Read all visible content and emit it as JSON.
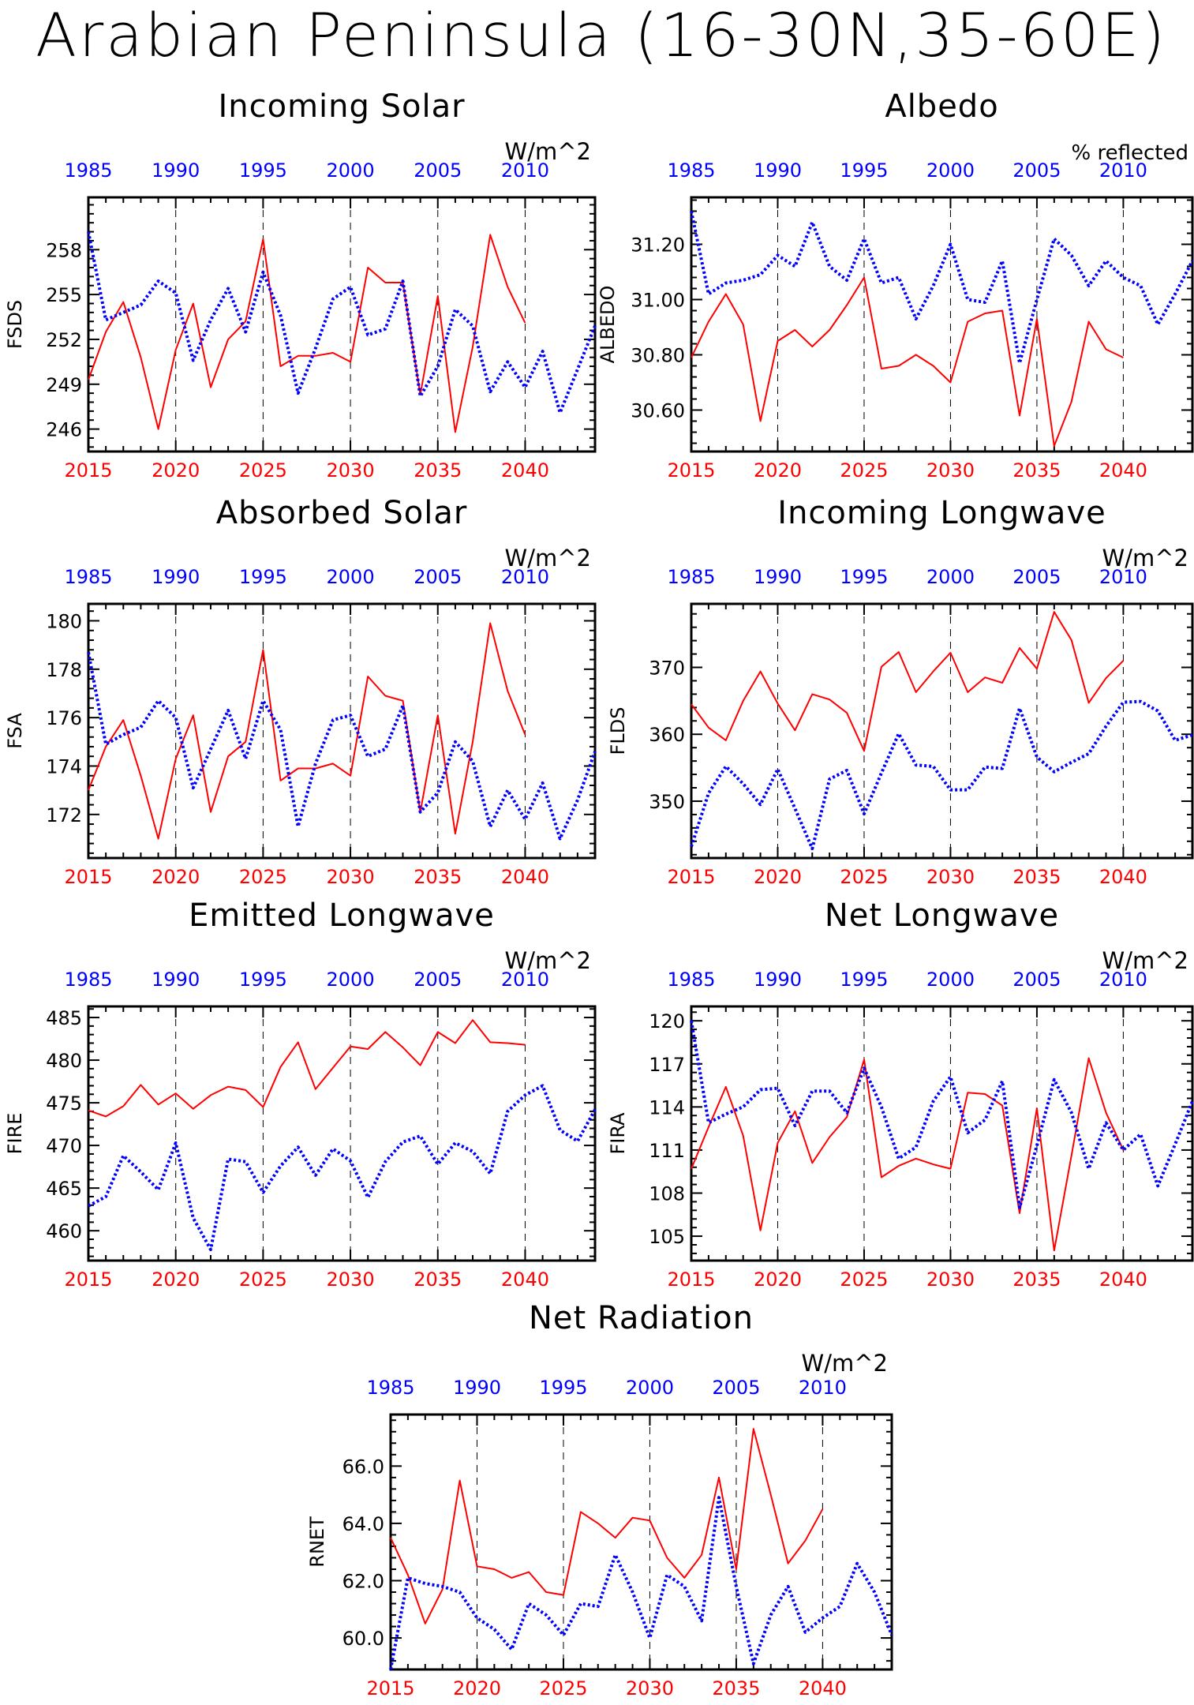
{
  "title": "Arabian Peninsula (16-30N,35-60E)",
  "colors": {
    "cesm2": "#ff0000",
    "obs": "#0000ff",
    "frame": "#000000",
    "grid": "#000000"
  },
  "chart_data": [
    {
      "type": "line",
      "title": "Incoming Solar",
      "units": "W/m^2",
      "ylabel": "FSDS",
      "ylim": [
        244.5,
        261.5
      ],
      "yticks": [
        246,
        249,
        252,
        255,
        258
      ],
      "ytick_labels": [
        "246",
        "249",
        "252",
        "255",
        "258"
      ],
      "x_bottom": {
        "range": [
          2015,
          2044
        ],
        "ticks": [
          2015,
          2020,
          2025,
          2030,
          2035,
          2040
        ],
        "color": "#ff0000"
      },
      "x_top": {
        "range": [
          1985,
          2014
        ],
        "ticks": [
          1985,
          1990,
          1995,
          2000,
          2005,
          2010
        ],
        "color": "#0000ff"
      },
      "gridlines_x": [
        2020,
        2025,
        2030,
        2035,
        2040
      ],
      "series": [
        {
          "axis": "bottom",
          "style": "solid",
          "color": "#ff0000",
          "x_start": 2015,
          "values": [
            249.3,
            252.5,
            254.5,
            250.8,
            246.0,
            251.3,
            254.4,
            248.8,
            252.0,
            253.2,
            258.7,
            250.2,
            250.9,
            250.9,
            251.1,
            250.5,
            256.8,
            255.8,
            255.8,
            248.3,
            254.9,
            245.8,
            251.5,
            259.0,
            255.5,
            253.1
          ]
        },
        {
          "axis": "top",
          "style": "dotted",
          "color": "#0000ff",
          "x_start": 1985,
          "values": [
            259.2,
            253.3,
            253.8,
            254.3,
            255.9,
            255.1,
            250.6,
            253.3,
            255.4,
            252.5,
            256.5,
            253.6,
            248.4,
            251.4,
            254.7,
            255.5,
            252.3,
            252.7,
            255.9,
            248.2,
            250.2,
            254.0,
            252.9,
            248.5,
            250.5,
            248.8,
            251.2,
            247.1,
            250.0,
            252.9
          ]
        }
      ]
    },
    {
      "type": "line",
      "title": "Albedo",
      "units": "% reflected",
      "ylabel": "ALBEDO",
      "ylim": [
        30.45,
        31.37
      ],
      "yticks": [
        30.6,
        30.8,
        31.0,
        31.2
      ],
      "ytick_labels": [
        "30.60",
        "30.80",
        "31.00",
        "31.20"
      ],
      "x_bottom": {
        "range": [
          2015,
          2044
        ],
        "ticks": [
          2015,
          2020,
          2025,
          2030,
          2035,
          2040
        ],
        "color": "#ff0000"
      },
      "x_top": {
        "range": [
          1985,
          2014
        ],
        "ticks": [
          1985,
          1990,
          1995,
          2000,
          2005,
          2010
        ],
        "color": "#0000ff"
      },
      "gridlines_x": [
        2020,
        2025,
        2030,
        2035,
        2040
      ],
      "series": [
        {
          "axis": "bottom",
          "style": "solid",
          "color": "#ff0000",
          "x_start": 2015,
          "values": [
            30.79,
            30.92,
            31.02,
            30.91,
            30.56,
            30.85,
            30.89,
            30.83,
            30.89,
            30.98,
            31.08,
            30.75,
            30.76,
            30.8,
            30.76,
            30.7,
            30.92,
            30.95,
            30.96,
            30.58,
            30.93,
            30.47,
            30.63,
            30.92,
            30.82,
            30.79
          ]
        },
        {
          "axis": "top",
          "style": "dotted",
          "color": "#0000ff",
          "x_start": 1985,
          "values": [
            31.32,
            31.02,
            31.06,
            31.07,
            31.09,
            31.16,
            31.12,
            31.28,
            31.12,
            31.07,
            31.22,
            31.06,
            31.08,
            30.93,
            31.05,
            31.2,
            31.0,
            30.99,
            31.14,
            30.77,
            31.0,
            31.22,
            31.16,
            31.05,
            31.14,
            31.08,
            31.05,
            30.91,
            31.02,
            31.14
          ]
        }
      ]
    },
    {
      "type": "line",
      "title": "Absorbed Solar",
      "units": "W/m^2",
      "ylabel": "FSA",
      "ylim": [
        170.2,
        180.7
      ],
      "yticks": [
        172,
        174,
        176,
        178,
        180
      ],
      "ytick_labels": [
        "172",
        "174",
        "176",
        "178",
        "180"
      ],
      "x_bottom": {
        "range": [
          2015,
          2044
        ],
        "ticks": [
          2015,
          2020,
          2025,
          2030,
          2035,
          2040
        ],
        "color": "#ff0000"
      },
      "x_top": {
        "range": [
          1985,
          2014
        ],
        "ticks": [
          1985,
          1990,
          1995,
          2000,
          2005,
          2010
        ],
        "color": "#0000ff"
      },
      "gridlines_x": [
        2020,
        2025,
        2030,
        2035,
        2040
      ],
      "series": [
        {
          "axis": "bottom",
          "style": "solid",
          "color": "#ff0000",
          "x_start": 2015,
          "values": [
            173.0,
            174.8,
            175.9,
            173.6,
            171.0,
            174.3,
            176.1,
            172.1,
            174.4,
            175.0,
            178.8,
            173.4,
            173.9,
            173.9,
            174.1,
            173.6,
            177.7,
            176.9,
            176.7,
            172.1,
            176.1,
            171.2,
            175.0,
            179.9,
            177.1,
            175.3
          ]
        },
        {
          "axis": "top",
          "style": "dotted",
          "color": "#0000ff",
          "x_start": 1985,
          "values": [
            178.7,
            174.9,
            175.3,
            175.6,
            176.7,
            176.0,
            173.1,
            174.7,
            176.3,
            174.3,
            176.7,
            175.5,
            171.5,
            174.1,
            175.9,
            176.1,
            174.4,
            174.7,
            176.5,
            172.1,
            172.9,
            175.0,
            174.2,
            171.5,
            173.0,
            171.8,
            173.3,
            171.0,
            172.6,
            174.6
          ]
        }
      ]
    },
    {
      "type": "line",
      "title": "Incoming Longwave",
      "units": "W/m^2",
      "ylabel": "FLDS",
      "ylim": [
        341.5,
        379.5
      ],
      "yticks": [
        350,
        360,
        370
      ],
      "ytick_labels": [
        "350",
        "360",
        "370"
      ],
      "x_bottom": {
        "range": [
          2015,
          2044
        ],
        "ticks": [
          2015,
          2020,
          2025,
          2030,
          2035,
          2040
        ],
        "color": "#ff0000"
      },
      "x_top": {
        "range": [
          1985,
          2014
        ],
        "ticks": [
          1985,
          1990,
          1995,
          2000,
          2005,
          2010
        ],
        "color": "#0000ff"
      },
      "gridlines_x": [
        2020,
        2025,
        2030,
        2035,
        2040
      ],
      "series": [
        {
          "axis": "bottom",
          "style": "solid",
          "color": "#ff0000",
          "x_start": 2015,
          "values": [
            364.5,
            361.0,
            359.1,
            365.0,
            369.4,
            364.6,
            360.6,
            366.0,
            365.2,
            363.2,
            357.5,
            370.1,
            372.3,
            366.3,
            369.4,
            372.2,
            366.3,
            368.5,
            367.7,
            372.9,
            369.8,
            378.3,
            374.1,
            364.7,
            368.4,
            371.0
          ]
        },
        {
          "axis": "top",
          "style": "dotted",
          "color": "#0000ff",
          "x_start": 1985,
          "values": [
            343.2,
            351.2,
            355.2,
            352.6,
            349.5,
            354.8,
            348.9,
            342.9,
            353.3,
            354.6,
            348.1,
            354.2,
            360.1,
            355.4,
            355.2,
            351.7,
            351.7,
            355.1,
            354.9,
            363.9,
            356.6,
            354.4,
            355.8,
            357.1,
            361.2,
            364.8,
            364.9,
            363.5,
            359.1,
            359.9
          ]
        }
      ]
    },
    {
      "type": "line",
      "title": "Emitted Longwave",
      "units": "W/m^2",
      "ylabel": "FIRE",
      "ylim": [
        456.5,
        486.3
      ],
      "yticks": [
        460,
        465,
        470,
        475,
        480,
        485
      ],
      "ytick_labels": [
        "460",
        "465",
        "470",
        "475",
        "480",
        "485"
      ],
      "x_bottom": {
        "range": [
          2015,
          2044
        ],
        "ticks": [
          2015,
          2020,
          2025,
          2030,
          2035,
          2040
        ],
        "color": "#ff0000"
      },
      "x_top": {
        "range": [
          1985,
          2014
        ],
        "ticks": [
          1985,
          1990,
          1995,
          2000,
          2005,
          2010
        ],
        "color": "#0000ff"
      },
      "gridlines_x": [
        2020,
        2025,
        2030,
        2035,
        2040
      ],
      "series": [
        {
          "axis": "bottom",
          "style": "solid",
          "color": "#ff0000",
          "x_start": 2015,
          "values": [
            474.1,
            473.4,
            474.6,
            477.1,
            474.8,
            476.1,
            474.3,
            475.9,
            476.9,
            476.5,
            474.5,
            479.2,
            482.1,
            476.6,
            479.1,
            481.6,
            481.3,
            483.3,
            481.5,
            479.4,
            483.3,
            482.0,
            484.7,
            482.1,
            482.0,
            481.8
          ]
        },
        {
          "axis": "top",
          "style": "dotted",
          "color": "#0000ff",
          "x_start": 1985,
          "values": [
            462.9,
            464.0,
            468.8,
            466.9,
            464.8,
            470.3,
            461.5,
            457.8,
            468.4,
            468.1,
            464.5,
            467.6,
            469.8,
            466.5,
            469.6,
            468.2,
            463.9,
            468.1,
            470.4,
            471.1,
            467.8,
            470.3,
            469.3,
            466.7,
            474.0,
            475.9,
            477.0,
            471.8,
            470.5,
            474.2
          ]
        }
      ]
    },
    {
      "type": "line",
      "title": "Net Longwave",
      "units": "W/m^2",
      "ylabel": "FIRA",
      "ylim": [
        103.3,
        121.0
      ],
      "yticks": [
        105,
        108,
        111,
        114,
        117,
        120
      ],
      "ytick_labels": [
        "105",
        "108",
        "111",
        "114",
        "117",
        "120"
      ],
      "x_bottom": {
        "range": [
          2015,
          2044
        ],
        "ticks": [
          2015,
          2020,
          2025,
          2030,
          2035,
          2040
        ],
        "color": "#ff0000"
      },
      "x_top": {
        "range": [
          1985,
          2014
        ],
        "ticks": [
          1985,
          1990,
          1995,
          2000,
          2005,
          2010
        ],
        "color": "#0000ff"
      },
      "gridlines_x": [
        2020,
        2025,
        2030,
        2035,
        2040
      ],
      "series": [
        {
          "axis": "bottom",
          "style": "solid",
          "color": "#ff0000",
          "x_start": 2015,
          "values": [
            109.7,
            112.6,
            115.4,
            112.0,
            105.4,
            111.5,
            113.7,
            110.1,
            111.9,
            113.3,
            117.3,
            109.1,
            109.9,
            110.4,
            110.0,
            109.7,
            115.0,
            114.9,
            114.1,
            106.6,
            113.9,
            104.0,
            110.6,
            117.4,
            113.6,
            111.0
          ]
        },
        {
          "axis": "top",
          "style": "dotted",
          "color": "#0000ff",
          "x_start": 1985,
          "values": [
            120.0,
            112.9,
            113.5,
            114.0,
            115.2,
            115.3,
            112.7,
            115.1,
            115.1,
            113.6,
            116.7,
            114.0,
            110.4,
            111.2,
            114.4,
            116.1,
            112.2,
            113.1,
            115.8,
            107.0,
            111.3,
            115.9,
            113.6,
            109.7,
            112.9,
            111.0,
            112.1,
            108.5,
            111.4,
            114.4
          ]
        }
      ]
    },
    {
      "type": "line",
      "title": "Net Radiation",
      "units": "W/m^2",
      "ylabel": "RNET",
      "ylim": [
        58.9,
        67.8
      ],
      "yticks": [
        60.0,
        62.0,
        64.0,
        66.0
      ],
      "ytick_labels": [
        "60.0",
        "62.0",
        "64.0",
        "66.0"
      ],
      "x_bottom": {
        "range": [
          2015,
          2044
        ],
        "ticks": [
          2015,
          2020,
          2025,
          2030,
          2035,
          2040
        ],
        "color": "#ff0000"
      },
      "x_top": {
        "range": [
          1985,
          2014
        ],
        "ticks": [
          1985,
          1990,
          1995,
          2000,
          2005,
          2010
        ],
        "color": "#0000ff"
      },
      "gridlines_x": [
        2020,
        2025,
        2030,
        2035,
        2040
      ],
      "series": [
        {
          "axis": "bottom",
          "style": "solid",
          "color": "#ff0000",
          "x_start": 2015,
          "values": [
            63.5,
            62.2,
            60.5,
            61.7,
            65.5,
            62.5,
            62.4,
            62.1,
            62.3,
            61.6,
            61.5,
            64.4,
            64.0,
            63.5,
            64.2,
            64.1,
            62.8,
            62.1,
            62.9,
            65.6,
            62.4,
            67.3,
            65.0,
            62.6,
            63.4,
            64.5
          ]
        },
        {
          "axis": "top",
          "style": "dotted",
          "color": "#0000ff",
          "x_start": 1985,
          "values": [
            58.9,
            62.1,
            61.9,
            61.8,
            61.6,
            60.7,
            60.3,
            59.6,
            61.2,
            60.8,
            60.1,
            61.2,
            61.1,
            62.9,
            61.6,
            60.0,
            62.2,
            61.8,
            60.6,
            64.9,
            61.8,
            59.1,
            60.8,
            61.8,
            60.2,
            60.7,
            61.1,
            62.6,
            61.6,
            60.1
          ]
        }
      ]
    }
  ]
}
